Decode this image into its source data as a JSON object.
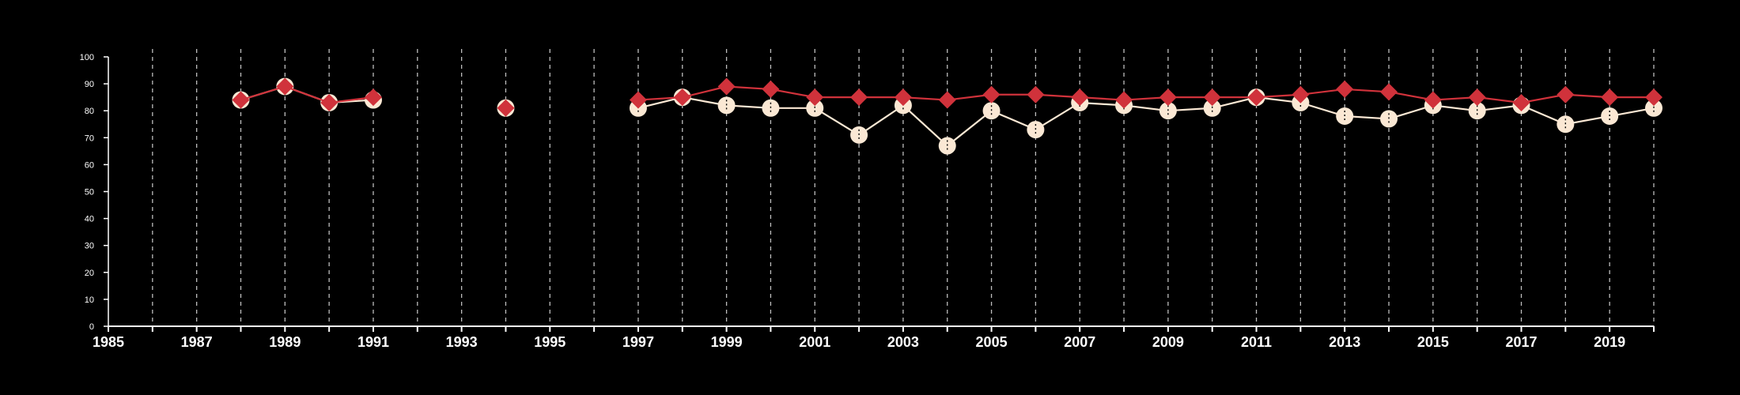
{
  "chart_data": {
    "type": "line",
    "title": "",
    "xlabel": "",
    "ylabel": "",
    "xlim": [
      1985,
      2020
    ],
    "ylim": [
      0,
      100
    ],
    "grid": "vertical-dashed",
    "x_tick_labels": [
      "1985",
      "1987",
      "1989",
      "1991",
      "1993",
      "1995",
      "1997",
      "1999",
      "2001",
      "2003",
      "2005",
      "2007",
      "2009",
      "2011",
      "2013",
      "2015",
      "2017",
      "2019"
    ],
    "x_minor_ticks": [
      1986,
      1988,
      1990,
      1992,
      1994,
      1996,
      1998,
      2000,
      2002,
      2004,
      2006,
      2008,
      2010,
      2012,
      2014,
      2016,
      2018,
      2020
    ],
    "y_tick_labels": [
      "0",
      "10",
      "20",
      "30",
      "40",
      "50",
      "60",
      "70",
      "80",
      "90",
      "100"
    ],
    "series": [
      {
        "color": "#fbe8d4",
        "marker": "circle",
        "points": [
          [
            1988,
            84
          ],
          [
            1989,
            89
          ],
          [
            1990,
            83
          ],
          [
            1991,
            84
          ],
          [
            1994,
            81
          ],
          [
            1997,
            81
          ],
          [
            1998,
            85
          ],
          [
            1999,
            82
          ],
          [
            2000,
            81
          ],
          [
            2001,
            81
          ],
          [
            2002,
            71
          ],
          [
            2003,
            82
          ],
          [
            2004,
            67
          ],
          [
            2005,
            80
          ],
          [
            2006,
            73
          ],
          [
            2007,
            83
          ],
          [
            2008,
            82
          ],
          [
            2009,
            80
          ],
          [
            2010,
            81
          ],
          [
            2011,
            85
          ],
          [
            2012,
            83
          ],
          [
            2013,
            78
          ],
          [
            2014,
            77
          ],
          [
            2015,
            82
          ],
          [
            2016,
            80
          ],
          [
            2017,
            82
          ],
          [
            2018,
            75
          ],
          [
            2019,
            78
          ],
          [
            2020,
            81
          ]
        ]
      },
      {
        "color": "#d0323b",
        "marker": "diamond",
        "points": [
          [
            1988,
            84
          ],
          [
            1989,
            89
          ],
          [
            1990,
            83
          ],
          [
            1991,
            85
          ],
          [
            1994,
            81
          ],
          [
            1997,
            84
          ],
          [
            1998,
            85
          ],
          [
            1999,
            89
          ],
          [
            2000,
            88
          ],
          [
            2001,
            85
          ],
          [
            2002,
            85
          ],
          [
            2003,
            85
          ],
          [
            2004,
            84
          ],
          [
            2005,
            86
          ],
          [
            2006,
            86
          ],
          [
            2007,
            85
          ],
          [
            2008,
            84
          ],
          [
            2009,
            85
          ],
          [
            2010,
            85
          ],
          [
            2011,
            85
          ],
          [
            2012,
            86
          ],
          [
            2013,
            88
          ],
          [
            2014,
            87
          ],
          [
            2015,
            84
          ],
          [
            2016,
            85
          ],
          [
            2017,
            83
          ],
          [
            2018,
            86
          ],
          [
            2019,
            85
          ],
          [
            2020,
            85
          ]
        ]
      }
    ]
  }
}
